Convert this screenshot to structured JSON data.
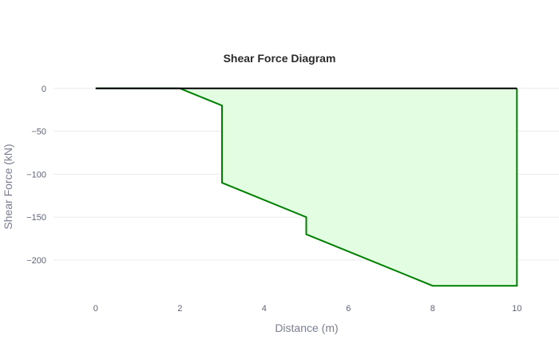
{
  "chart_data": {
    "type": "area",
    "title": "Shear Force Diagram",
    "xlabel": "Distance (m)",
    "ylabel": "Shear Force (kN)",
    "xlim": [
      -1,
      11
    ],
    "ylim": [
      -240,
      10
    ],
    "x_ticks": [
      0,
      2,
      4,
      6,
      8,
      10
    ],
    "x_tick_labels": [
      "0",
      "2",
      "4",
      "6",
      "8",
      "10"
    ],
    "y_ticks": [
      0,
      -50,
      -100,
      -150,
      -200
    ],
    "y_tick_labels": [
      "0",
      "−50",
      "−100",
      "−150",
      "−200"
    ],
    "grid": true,
    "series": [
      {
        "x": [
          0,
          2,
          3,
          3,
          5,
          5,
          8,
          10,
          10
        ],
        "y": [
          0,
          0,
          -20,
          -110,
          -150,
          -170,
          -230,
          -230,
          0
        ],
        "line_color": "#008000",
        "fill_color": "#e2fde2"
      }
    ],
    "baseline": {
      "x": [
        0,
        10
      ],
      "y": [
        0,
        0
      ],
      "color": "#000000"
    }
  }
}
